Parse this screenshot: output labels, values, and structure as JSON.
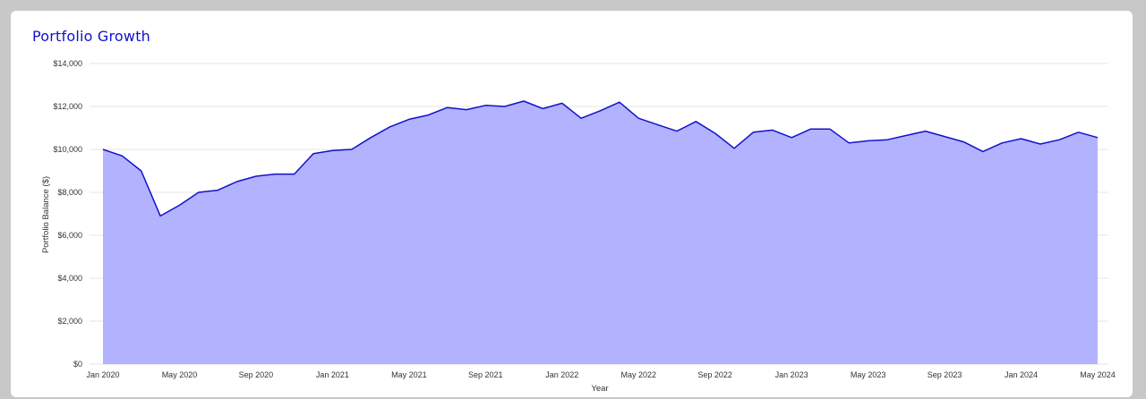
{
  "card": {
    "title": "Portfolio Growth"
  },
  "chart_data": {
    "type": "area",
    "title": "Portfolio Growth",
    "xlabel": "Year",
    "ylabel": "Portfolio Balance ($)",
    "ylim": [
      0,
      14000
    ],
    "yticks": [
      0,
      2000,
      4000,
      6000,
      8000,
      10000,
      12000,
      14000
    ],
    "ytick_labels": [
      "$0",
      "$2,000",
      "$4,000",
      "$6,000",
      "$8,000",
      "$10,000",
      "$12,000",
      "$14,000"
    ],
    "xtick_labels": [
      "Jan 2020",
      "May 2020",
      "Sep 2020",
      "Jan 2021",
      "May 2021",
      "Sep 2021",
      "Jan 2022",
      "May 2022",
      "Sep 2022",
      "Jan 2023",
      "May 2023",
      "Sep 2023",
      "Jan 2024",
      "May 2024"
    ],
    "xtick_every": 4,
    "grid": true,
    "x": [
      "2020-01",
      "2020-02",
      "2020-03",
      "2020-04",
      "2020-05",
      "2020-06",
      "2020-07",
      "2020-08",
      "2020-09",
      "2020-10",
      "2020-11",
      "2020-12",
      "2021-01",
      "2021-02",
      "2021-03",
      "2021-04",
      "2021-05",
      "2021-06",
      "2021-07",
      "2021-08",
      "2021-09",
      "2021-10",
      "2021-11",
      "2021-12",
      "2022-01",
      "2022-02",
      "2022-03",
      "2022-04",
      "2022-05",
      "2022-06",
      "2022-07",
      "2022-08",
      "2022-09",
      "2022-10",
      "2022-11",
      "2022-12",
      "2023-01",
      "2023-02",
      "2023-03",
      "2023-04",
      "2023-05",
      "2023-06",
      "2023-07",
      "2023-08",
      "2023-09",
      "2023-10",
      "2023-11",
      "2023-12",
      "2024-01",
      "2024-02",
      "2024-03",
      "2024-04",
      "2024-05"
    ],
    "values": [
      10000,
      9700,
      9000,
      6900,
      7400,
      8000,
      8100,
      8500,
      8750,
      8850,
      8850,
      9800,
      9950,
      10000,
      10550,
      11050,
      11400,
      11600,
      11950,
      11850,
      12050,
      12000,
      12250,
      11900,
      12150,
      11450,
      11800,
      12200,
      11450,
      11150,
      10850,
      11300,
      10750,
      10050,
      10800,
      10900,
      10550,
      10950,
      10950,
      10300,
      10400,
      10450,
      10650,
      10850,
      10600,
      10350,
      9900,
      10300,
      10500,
      10250,
      10450,
      10800,
      10550
    ],
    "colors": {
      "line": "#1111cc",
      "fill": "#b3b2ff",
      "grid": "#e6e6e6"
    }
  }
}
